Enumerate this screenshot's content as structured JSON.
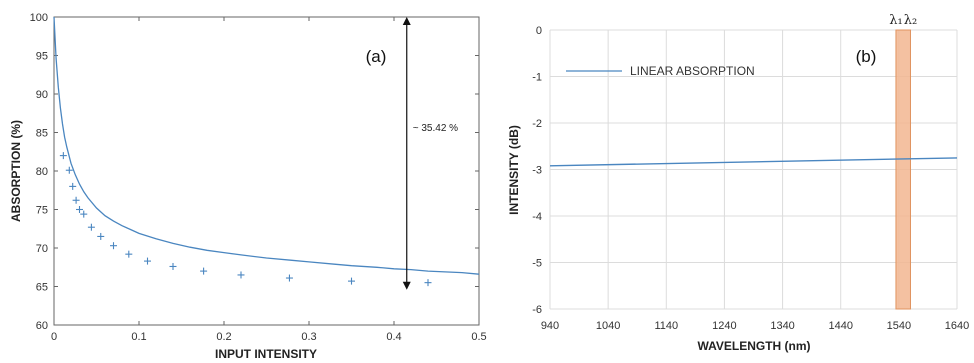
{
  "chart_data": [
    {
      "panel": "(a)",
      "type": "line",
      "xlabel": "INPUT INTENSITY",
      "ylabel": "ABSORPTION (%)",
      "xlim": [
        0,
        0.5
      ],
      "ylim": [
        60,
        100
      ],
      "xticks": [
        0,
        0.1,
        0.2,
        0.3,
        0.4,
        0.5
      ],
      "yticks": [
        60,
        65,
        70,
        75,
        80,
        85,
        90,
        95,
        100
      ],
      "grid": false,
      "color": "#4a86c0",
      "series": [
        {
          "x": [
            0,
            0.0025,
            0.005,
            0.0075,
            0.01,
            0.0125,
            0.015,
            0.02,
            0.025,
            0.03,
            0.035,
            0.04,
            0.05,
            0.06,
            0.07,
            0.08,
            0.09,
            0.1,
            0.12,
            0.14,
            0.16,
            0.18,
            0.2,
            0.22,
            0.25,
            0.28,
            0.3,
            0.33,
            0.35,
            0.38,
            0.4,
            0.42,
            0.44,
            0.46,
            0.48,
            0.5
          ],
          "y": [
            100,
            94.6,
            90.9,
            88.2,
            86.1,
            84.4,
            83.1,
            81.0,
            79.5,
            78.3,
            77.3,
            76.5,
            75.2,
            74.2,
            73.5,
            72.9,
            72.4,
            71.9,
            71.2,
            70.6,
            70.1,
            69.7,
            69.4,
            69.1,
            68.7,
            68.4,
            68.2,
            67.9,
            67.7,
            67.5,
            67.3,
            67.2,
            67.0,
            66.9,
            66.8,
            66.6
          ]
        }
      ],
      "markers": {
        "style": "+",
        "x": [
          0.011,
          0.018,
          0.022,
          0.026,
          0.03,
          0.035,
          0.044,
          0.055,
          0.07,
          0.088,
          0.11,
          0.14,
          0.176,
          0.22,
          0.277,
          0.35,
          0.44
        ],
        "y": [
          82.0,
          80.1,
          78.0,
          76.2,
          75.0,
          74.4,
          72.7,
          71.5,
          70.3,
          69.2,
          68.3,
          67.6,
          67.0,
          66.5,
          66.1,
          65.7,
          65.5
        ]
      },
      "annotation": {
        "text": "~ 35.42 %",
        "x": 0.415,
        "from": 100,
        "to": 64.58
      }
    },
    {
      "panel": "(b)",
      "type": "line",
      "xlabel": "WAVELENGTH (nm)",
      "ylabel": "INTENSITY (dB)",
      "xlim": [
        940,
        1640
      ],
      "ylim": [
        -6,
        0
      ],
      "xticks": [
        940,
        1040,
        1140,
        1240,
        1340,
        1440,
        1540,
        1640
      ],
      "yticks": [
        0,
        -1,
        -2,
        -3,
        -4,
        -5,
        -6
      ],
      "grid": true,
      "color": "#4a86c0",
      "series": [
        {
          "name": "LINEAR ABSORPTION",
          "x": [
            940,
            1640
          ],
          "y": [
            -2.92,
            -2.75
          ]
        }
      ],
      "legend": "top-left",
      "band": {
        "from": 1535,
        "to": 1560,
        "labels": [
          "λ₁",
          "λ₂"
        ],
        "color": "#f2b691"
      }
    }
  ]
}
